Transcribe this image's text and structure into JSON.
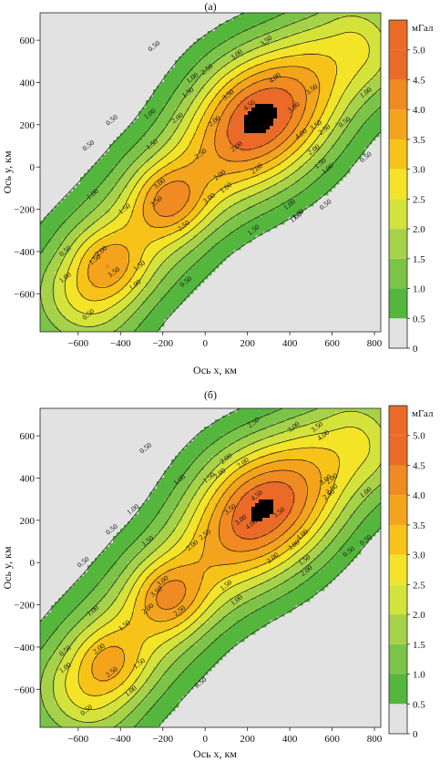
{
  "figure": {
    "colors": {
      "background_region": "#e2e2e2",
      "levels": [
        "#e2e2e2",
        "#55b63e",
        "#7cc448",
        "#a6d24a",
        "#d4e23c",
        "#f4e428",
        "#f7c318",
        "#f4a41c",
        "#f08a22",
        "#ec6a28"
      ]
    }
  },
  "chart_data": [
    {
      "type": "contour",
      "title": "(а)",
      "xlabel": "Ось x, км",
      "ylabel": "Ось y, км",
      "xlim": [
        -780,
        830
      ],
      "ylim": [
        -780,
        730
      ],
      "xticks": [
        -600,
        -400,
        -200,
        0,
        200,
        400,
        600,
        800
      ],
      "yticks": [
        -600,
        -400,
        -200,
        0,
        200,
        400,
        600
      ],
      "xtick_labels": [
        "−600",
        "−400",
        "−200",
        "0",
        "200",
        "400",
        "600",
        "800"
      ],
      "ytick_labels": [
        "−600",
        "−400",
        "−200",
        "0",
        "200",
        "400",
        "600"
      ],
      "colorbar": {
        "unit": "мГал",
        "levels": [
          0,
          0.5,
          1.0,
          1.5,
          2.0,
          2.5,
          3.0,
          3.5,
          4.0,
          4.5,
          5.0
        ],
        "labels": [
          "0",
          "0.5",
          "1.0",
          "1.5",
          "2.0",
          "2.5",
          "3.0",
          "3.5",
          "4.0",
          "4.5",
          "5.0"
        ]
      },
      "contour_levels": [
        0.5,
        1.0,
        1.5,
        2.0,
        2.5,
        3.0,
        3.5,
        4.0,
        4.5
      ],
      "anomalies": [
        {
          "x": 260,
          "y": 230,
          "peak": 4.8
        },
        {
          "x": -170,
          "y": -160,
          "peak": 3.9
        },
        {
          "x": -460,
          "y": -470,
          "peak": 3.6
        }
      ],
      "contour_labels": [
        {
          "text": "2.50",
          "x": 10,
          "y": 460
        },
        {
          "text": "3.00",
          "x": 150,
          "y": 530
        },
        {
          "text": "3.50",
          "x": 290,
          "y": 595
        },
        {
          "text": "4.00",
          "x": 330,
          "y": 420
        },
        {
          "text": "4.50",
          "x": 210,
          "y": 290
        },
        {
          "text": "3.50",
          "x": 110,
          "y": 340
        },
        {
          "text": "3.00",
          "x": 420,
          "y": 280
        },
        {
          "text": "4.00",
          "x": 455,
          "y": 155
        },
        {
          "text": "3.50",
          "x": 505,
          "y": 365
        },
        {
          "text": "3.50",
          "x": 525,
          "y": 195
        },
        {
          "text": "2.50",
          "x": 565,
          "y": 175
        },
        {
          "text": "2.00",
          "x": 515,
          "y": 80
        },
        {
          "text": "1.50",
          "x": 545,
          "y": 15
        },
        {
          "text": "1.00",
          "x": 580,
          "y": -10
        },
        {
          "text": "0.50",
          "x": 660,
          "y": 210
        },
        {
          "text": "0.50",
          "x": 760,
          "y": 45
        },
        {
          "text": "1.00",
          "x": 760,
          "y": 350
        },
        {
          "text": "0.50",
          "x": -240,
          "y": 570
        },
        {
          "text": "1.00",
          "x": -60,
          "y": 420
        },
        {
          "text": "1.00",
          "x": -260,
          "y": 250
        },
        {
          "text": "1.00",
          "x": 100,
          "y": -100
        },
        {
          "text": "0.50",
          "x": -440,
          "y": 220
        },
        {
          "text": "0.50",
          "x": -550,
          "y": 100
        },
        {
          "text": "1.50",
          "x": -250,
          "y": 105
        },
        {
          "text": "1.50",
          "x": -80,
          "y": 350
        },
        {
          "text": "2.00",
          "x": -130,
          "y": 230
        },
        {
          "text": "2.00",
          "x": 45,
          "y": 215
        },
        {
          "text": "2.00",
          "x": 150,
          "y": 95
        },
        {
          "text": "2.50",
          "x": -20,
          "y": 60
        },
        {
          "text": "3.00",
          "x": -215,
          "y": -80
        },
        {
          "text": "3.00",
          "x": 20,
          "y": -150
        },
        {
          "text": "3.50",
          "x": -230,
          "y": -165
        },
        {
          "text": "2.50",
          "x": -100,
          "y": -280
        },
        {
          "text": "2.00",
          "x": 70,
          "y": -40
        },
        {
          "text": "2.00",
          "x": 245,
          "y": -10
        },
        {
          "text": "1.00",
          "x": -530,
          "y": -130
        },
        {
          "text": "1.50",
          "x": -380,
          "y": -200
        },
        {
          "text": "1.00",
          "x": 400,
          "y": -180
        },
        {
          "text": "1.50",
          "x": 230,
          "y": -300
        },
        {
          "text": "1.00",
          "x": 440,
          "y": -225
        },
        {
          "text": "0.50",
          "x": 570,
          "y": -180
        },
        {
          "text": "1.00",
          "x": 430,
          "y": -240
        },
        {
          "text": "2.00",
          "x": -490,
          "y": -400
        },
        {
          "text": "1.50",
          "x": -520,
          "y": -440
        },
        {
          "text": "1.00",
          "x": -660,
          "y": -525
        },
        {
          "text": "1.50",
          "x": -310,
          "y": -470
        },
        {
          "text": "1.00",
          "x": -330,
          "y": -560
        },
        {
          "text": "0.50",
          "x": -660,
          "y": -400
        },
        {
          "text": "0.50",
          "x": -90,
          "y": -545
        },
        {
          "text": "0.50",
          "x": -550,
          "y": -700
        },
        {
          "text": "3.50",
          "x": -430,
          "y": -500
        }
      ]
    },
    {
      "type": "contour",
      "title": "(б)",
      "xlabel": "Ось x, км",
      "ylabel": "Ось y, км",
      "xlim": [
        -780,
        830
      ],
      "ylim": [
        -780,
        730
      ],
      "xticks": [
        -600,
        -400,
        -200,
        0,
        200,
        400,
        600,
        800
      ],
      "yticks": [
        -600,
        -400,
        -200,
        0,
        200,
        400,
        600
      ],
      "xtick_labels": [
        "−600",
        "−400",
        "−200",
        "0",
        "200",
        "400",
        "600",
        "800"
      ],
      "ytick_labels": [
        "−600",
        "−400",
        "−200",
        "0",
        "200",
        "400",
        "600"
      ],
      "colorbar": {
        "unit": "мГал",
        "levels": [
          0,
          0.5,
          1.0,
          1.5,
          2.0,
          2.5,
          3.0,
          3.5,
          4.0,
          4.5,
          5.0
        ],
        "labels": [
          "0",
          "0.5",
          "1.0",
          "1.5",
          "2.0",
          "2.5",
          "3.0",
          "3.5",
          "4.0",
          "4.5",
          "5.0"
        ]
      },
      "contour_levels": [
        0.5,
        1.0,
        1.5,
        2.0,
        2.5,
        3.0,
        3.5,
        4.0,
        4.5
      ],
      "anomalies": [
        {
          "x": 270,
          "y": 250,
          "peak": 4.7
        },
        {
          "x": -170,
          "y": -160,
          "peak": 3.8
        },
        {
          "x": -460,
          "y": -480,
          "peak": 3.4
        }
      ],
      "contour_labels": [
        {
          "text": "2.50",
          "x": 230,
          "y": 660
        },
        {
          "text": "3.00",
          "x": 420,
          "y": 640
        },
        {
          "text": "3.50",
          "x": 530,
          "y": 640
        },
        {
          "text": "4.00",
          "x": 560,
          "y": 600
        },
        {
          "text": "3.00",
          "x": 570,
          "y": 390
        },
        {
          "text": "2.50",
          "x": 600,
          "y": 345
        },
        {
          "text": "2.00",
          "x": 600,
          "y": 395
        },
        {
          "text": "2.50",
          "x": 585,
          "y": 320
        },
        {
          "text": "1.00",
          "x": 760,
          "y": 330
        },
        {
          "text": "0.50",
          "x": 760,
          "y": 105
        },
        {
          "text": "0.50",
          "x": 680,
          "y": 50
        },
        {
          "text": "0.50",
          "x": -280,
          "y": 540
        },
        {
          "text": "1.00",
          "x": -120,
          "y": 390
        },
        {
          "text": "1.00",
          "x": -340,
          "y": 250
        },
        {
          "text": "0.50",
          "x": -440,
          "y": 155
        },
        {
          "text": "0.50",
          "x": -575,
          "y": 0
        },
        {
          "text": "1.50",
          "x": -270,
          "y": 100
        },
        {
          "text": "1.50",
          "x": 20,
          "y": 400
        },
        {
          "text": "2.00",
          "x": 70,
          "y": 420
        },
        {
          "text": "2.00",
          "x": 100,
          "y": 490
        },
        {
          "text": "2.00",
          "x": 180,
          "y": 470
        },
        {
          "text": "2.50",
          "x": 0,
          "y": 130
        },
        {
          "text": "3.00",
          "x": 170,
          "y": 200
        },
        {
          "text": "3.50",
          "x": 120,
          "y": 250
        },
        {
          "text": "4.00",
          "x": 220,
          "y": 180
        },
        {
          "text": "4.50",
          "x": 245,
          "y": 315
        },
        {
          "text": "3.50",
          "x": 350,
          "y": 235
        },
        {
          "text": "4.00",
          "x": 460,
          "y": 130
        },
        {
          "text": "3.00",
          "x": 420,
          "y": 80
        },
        {
          "text": "2.00",
          "x": 320,
          "y": 20
        },
        {
          "text": "1.50",
          "x": 470,
          "y": 10
        },
        {
          "text": "2.00",
          "x": 480,
          "y": -40
        },
        {
          "text": "1.00",
          "x": 150,
          "y": -180
        },
        {
          "text": "1.50",
          "x": 100,
          "y": -110
        },
        {
          "text": "2.00",
          "x": -60,
          "y": 80
        },
        {
          "text": "2.50",
          "x": -120,
          "y": -230
        },
        {
          "text": "3.00",
          "x": -200,
          "y": -90
        },
        {
          "text": "3.50",
          "x": -230,
          "y": -140
        },
        {
          "text": "2.00",
          "x": -270,
          "y": -220
        },
        {
          "text": "1.50",
          "x": -380,
          "y": -300
        },
        {
          "text": "1.00",
          "x": -530,
          "y": -230
        },
        {
          "text": "1.50",
          "x": -310,
          "y": -480
        },
        {
          "text": "2.00",
          "x": -500,
          "y": -410
        },
        {
          "text": "1.00",
          "x": -660,
          "y": -500
        },
        {
          "text": "0.50",
          "x": -660,
          "y": -420
        },
        {
          "text": "0.50",
          "x": -20,
          "y": -570
        },
        {
          "text": "0.50",
          "x": -560,
          "y": -700
        },
        {
          "text": "2.50",
          "x": -440,
          "y": -520
        },
        {
          "text": "1.00",
          "x": -350,
          "y": -610
        }
      ]
    }
  ]
}
